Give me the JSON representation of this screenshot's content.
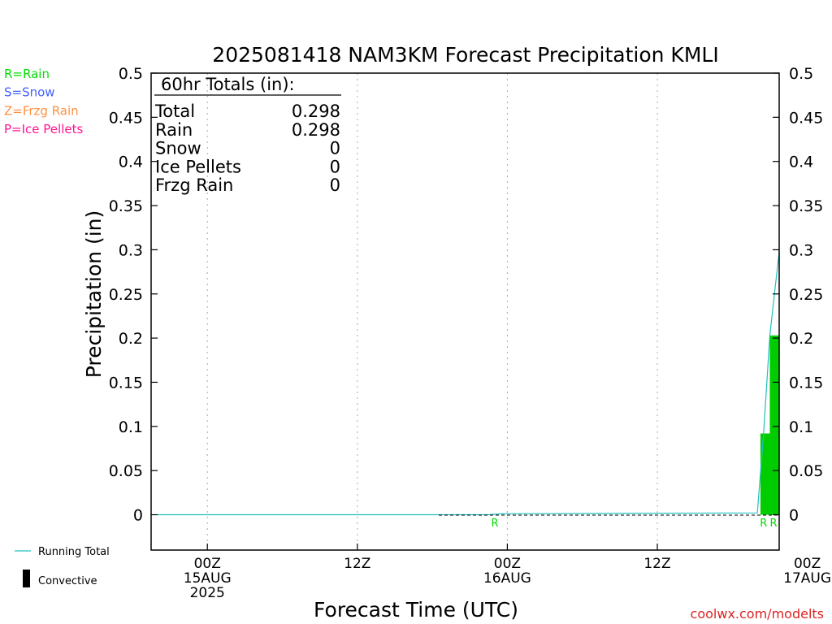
{
  "chart_data": {
    "type": "bar",
    "title": "2025081418 NAM3KM Forecast Precipitation KMLI",
    "xlabel": "Forecast Time (UTC)",
    "ylabel": "Precipitation (in)",
    "ylim": [
      -0.04,
      0.5
    ],
    "yticks": [
      0,
      0.05,
      0.1,
      0.15,
      0.2,
      0.25,
      0.3,
      0.35,
      0.4,
      0.45,
      0.5
    ],
    "xlim_hours": [
      -4.5,
      45.75
    ],
    "x_unit": "hours after 2025-08-15 00Z",
    "gridlines_x_hours": [
      0,
      12,
      24,
      36,
      48
    ],
    "xtick_labels": [
      {
        "hour": 0,
        "lines": [
          "00Z",
          "15AUG",
          "2025"
        ]
      },
      {
        "hour": 12,
        "lines": [
          "12Z"
        ]
      },
      {
        "hour": 24,
        "lines": [
          "00Z",
          "16AUG"
        ]
      },
      {
        "hour": 36,
        "lines": [
          "12Z"
        ]
      },
      {
        "hour": 48,
        "lines": [
          "00Z",
          "17AUG"
        ]
      }
    ],
    "bars": [
      {
        "start_hour": 44.25,
        "end_hour": 45.0,
        "value": 0.092,
        "ptype": "R"
      },
      {
        "start_hour": 45.0,
        "end_hour": 45.75,
        "value": 0.203,
        "ptype": "R"
      }
    ],
    "ptype_markers": [
      {
        "hour": 23.0,
        "label": "R"
      },
      {
        "hour": 44.5,
        "label": "R"
      },
      {
        "hour": 45.3,
        "label": "R"
      }
    ],
    "running_total": {
      "hours": [
        -4.0,
        22.5,
        23.5,
        44.0,
        44.5,
        45.0,
        45.75
      ],
      "values": [
        0.0,
        0.0,
        0.001,
        0.002,
        0.092,
        0.203,
        0.298
      ]
    },
    "totals_box": {
      "heading": "60hr Totals (in):",
      "rows": [
        {
          "label": "Total",
          "value": "0.298"
        },
        {
          "label": "Rain",
          "value": "0.298"
        },
        {
          "label": "Snow",
          "value": "0"
        },
        {
          "label": "Ice Pellets",
          "value": "0"
        },
        {
          "label": "Frzg Rain",
          "value": "0"
        }
      ]
    },
    "ptype_legend": [
      {
        "text": "R=Rain",
        "color": "#00dd00"
      },
      {
        "text": "S=Snow",
        "color": "#4060ff"
      },
      {
        "text": "Z=Frzg Rain",
        "color": "#ff9040"
      },
      {
        "text": "P=Ice Pellets",
        "color": "#ff1493"
      }
    ],
    "series_legend": [
      {
        "text": "Running Total",
        "color": "#20c0c0",
        "kind": "line"
      },
      {
        "text": "Convective",
        "color": "#000000",
        "kind": "bar"
      }
    ],
    "bar_color": "#00cc00",
    "running_total_color": "#20c0c0",
    "credit": "coolwx.com/modelts",
    "credit_color": "#dd2222"
  }
}
